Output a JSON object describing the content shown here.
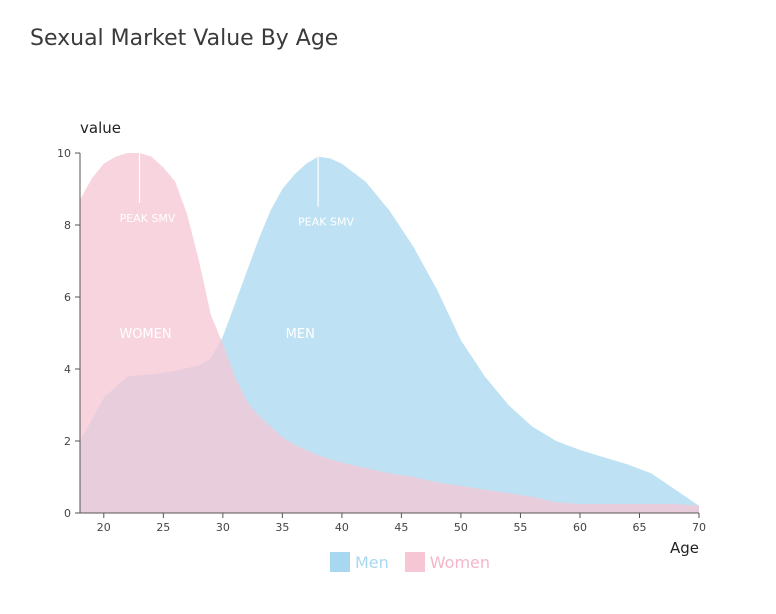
{
  "title": "Sexual Market Value By Age",
  "chart_data": {
    "type": "area",
    "title": "Sexual Market Value By Age",
    "xlabel": "Age",
    "ylabel": "value",
    "xlim": [
      18,
      70
    ],
    "ylim": [
      0,
      10
    ],
    "xticks": [
      20,
      25,
      30,
      35,
      40,
      45,
      50,
      55,
      60,
      65,
      70
    ],
    "yticks": [
      0,
      2,
      4,
      6,
      8,
      10
    ],
    "legend_position": "bottom",
    "series": [
      {
        "name": "Men",
        "color": "#a8d8f0",
        "label_color": "#a8d8f0",
        "points": [
          [
            18,
            2.0
          ],
          [
            20,
            3.2
          ],
          [
            22,
            3.8
          ],
          [
            24,
            3.85
          ],
          [
            26,
            3.95
          ],
          [
            28,
            4.1
          ],
          [
            29,
            4.3
          ],
          [
            30,
            4.9
          ],
          [
            31,
            5.8
          ],
          [
            32,
            6.7
          ],
          [
            33,
            7.6
          ],
          [
            34,
            8.4
          ],
          [
            35,
            9.0
          ],
          [
            36,
            9.4
          ],
          [
            37,
            9.7
          ],
          [
            38,
            9.9
          ],
          [
            39,
            9.85
          ],
          [
            40,
            9.7
          ],
          [
            42,
            9.2
          ],
          [
            44,
            8.4
          ],
          [
            46,
            7.4
          ],
          [
            48,
            6.2
          ],
          [
            50,
            4.8
          ],
          [
            52,
            3.8
          ],
          [
            54,
            3.0
          ],
          [
            56,
            2.4
          ],
          [
            58,
            2.0
          ],
          [
            60,
            1.75
          ],
          [
            62,
            1.55
          ],
          [
            64,
            1.35
          ],
          [
            66,
            1.1
          ],
          [
            68,
            0.65
          ],
          [
            70,
            0.2
          ]
        ],
        "annotations": [
          {
            "age": 38,
            "value": 9.9,
            "text": "PEAK SMV"
          },
          {
            "age": 36.5,
            "value": 5.0,
            "text": "MEN"
          }
        ]
      },
      {
        "name": "Women",
        "color": "#f6c6d4",
        "label_color": "#f4b6c8",
        "points": [
          [
            18,
            8.7
          ],
          [
            19,
            9.3
          ],
          [
            20,
            9.7
          ],
          [
            21,
            9.9
          ],
          [
            22,
            10.0
          ],
          [
            23,
            10.0
          ],
          [
            24,
            9.9
          ],
          [
            25,
            9.6
          ],
          [
            26,
            9.2
          ],
          [
            27,
            8.3
          ],
          [
            28,
            7.0
          ],
          [
            29,
            5.5
          ],
          [
            30,
            4.7
          ],
          [
            31,
            3.8
          ],
          [
            32,
            3.1
          ],
          [
            33,
            2.7
          ],
          [
            34,
            2.4
          ],
          [
            35,
            2.1
          ],
          [
            36,
            1.9
          ],
          [
            38,
            1.6
          ],
          [
            40,
            1.4
          ],
          [
            42,
            1.25
          ],
          [
            44,
            1.1
          ],
          [
            46,
            1.0
          ],
          [
            48,
            0.85
          ],
          [
            50,
            0.75
          ],
          [
            52,
            0.65
          ],
          [
            54,
            0.55
          ],
          [
            56,
            0.45
          ],
          [
            58,
            0.3
          ],
          [
            60,
            0.25
          ],
          [
            62,
            0.25
          ],
          [
            64,
            0.25
          ],
          [
            66,
            0.25
          ],
          [
            68,
            0.25
          ],
          [
            70,
            0.2
          ]
        ],
        "annotations": [
          {
            "age": 23,
            "value": 10.0,
            "text": "PEAK SMV"
          },
          {
            "age": 23.5,
            "value": 5.0,
            "text": "WOMEN"
          }
        ]
      }
    ]
  },
  "legend": {
    "men": "Men",
    "women": "Women"
  }
}
